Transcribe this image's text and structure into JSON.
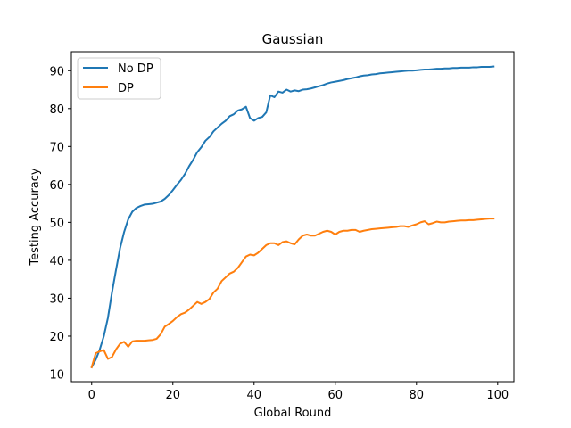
{
  "chart_data": {
    "type": "line",
    "title": "Gaussian",
    "xlabel": "Global Round",
    "ylabel": "Testing Accuracy",
    "xlim": [
      -5,
      104
    ],
    "ylim": [
      8,
      95
    ],
    "xticks": [
      0,
      20,
      40,
      60,
      80,
      100
    ],
    "yticks": [
      10,
      20,
      30,
      40,
      50,
      60,
      70,
      80,
      90
    ],
    "grid": false,
    "legend_position": "top-left",
    "x": [
      0,
      1,
      2,
      3,
      4,
      5,
      6,
      7,
      8,
      9,
      10,
      11,
      12,
      13,
      14,
      15,
      16,
      17,
      18,
      19,
      20,
      21,
      22,
      23,
      24,
      25,
      26,
      27,
      28,
      29,
      30,
      31,
      32,
      33,
      34,
      35,
      36,
      37,
      38,
      39,
      40,
      41,
      42,
      43,
      44,
      45,
      46,
      47,
      48,
      49,
      50,
      51,
      52,
      53,
      54,
      55,
      56,
      57,
      58,
      59,
      60,
      61,
      62,
      63,
      64,
      65,
      66,
      67,
      68,
      69,
      70,
      71,
      72,
      73,
      74,
      75,
      76,
      77,
      78,
      79,
      80,
      81,
      82,
      83,
      84,
      85,
      86,
      87,
      88,
      89,
      90,
      91,
      92,
      93,
      94,
      95,
      96,
      97,
      98,
      99
    ],
    "series": [
      {
        "name": "No DP",
        "color": "#1f77b4",
        "values": [
          11.8,
          13.8,
          16.5,
          20.0,
          24.8,
          31.5,
          37.5,
          43.2,
          47.5,
          50.8,
          52.8,
          53.8,
          54.3,
          54.7,
          54.8,
          54.9,
          55.2,
          55.5,
          56.2,
          57.2,
          58.5,
          59.9,
          61.2,
          62.8,
          64.8,
          66.5,
          68.5,
          69.8,
          71.5,
          72.5,
          74.0,
          75.0,
          76.0,
          76.8,
          78.0,
          78.5,
          79.5,
          79.8,
          80.5,
          77.5,
          76.8,
          77.5,
          77.8,
          79.0,
          83.5,
          83.0,
          84.5,
          84.2,
          85.0,
          84.5,
          84.8,
          84.6,
          85.0,
          85.1,
          85.3,
          85.6,
          85.9,
          86.2,
          86.6,
          86.9,
          87.1,
          87.3,
          87.5,
          87.8,
          88.0,
          88.2,
          88.5,
          88.7,
          88.8,
          89.0,
          89.1,
          89.3,
          89.4,
          89.5,
          89.6,
          89.7,
          89.8,
          89.9,
          90.0,
          90.0,
          90.1,
          90.2,
          90.3,
          90.3,
          90.4,
          90.5,
          90.5,
          90.6,
          90.6,
          90.7,
          90.7,
          90.8,
          90.8,
          90.8,
          90.9,
          90.9,
          91.0,
          91.0,
          91.0,
          91.1
        ]
      },
      {
        "name": "DP",
        "color": "#ff7f0e",
        "values": [
          11.8,
          15.5,
          16.0,
          16.3,
          14.0,
          14.5,
          16.5,
          18.0,
          18.5,
          17.2,
          18.6,
          18.8,
          18.8,
          18.8,
          18.9,
          19.0,
          19.3,
          20.5,
          22.5,
          23.2,
          24.0,
          25.0,
          25.8,
          26.2,
          27.0,
          28.0,
          29.0,
          28.5,
          29.0,
          29.8,
          31.5,
          32.5,
          34.5,
          35.5,
          36.5,
          37.0,
          38.0,
          39.5,
          41.0,
          41.5,
          41.3,
          42.0,
          43.0,
          44.0,
          44.5,
          44.5,
          44.0,
          44.8,
          45.0,
          44.5,
          44.2,
          45.5,
          46.5,
          46.8,
          46.5,
          46.5,
          47.0,
          47.5,
          47.8,
          47.5,
          46.8,
          47.5,
          47.8,
          47.8,
          48.0,
          48.0,
          47.5,
          47.8,
          48.0,
          48.2,
          48.3,
          48.4,
          48.5,
          48.6,
          48.7,
          48.8,
          49.0,
          49.0,
          48.8,
          49.2,
          49.5,
          50.0,
          50.3,
          49.5,
          49.8,
          50.2,
          50.0,
          50.0,
          50.2,
          50.3,
          50.4,
          50.5,
          50.5,
          50.6,
          50.6,
          50.7,
          50.8,
          50.9,
          51.0,
          51.0
        ]
      }
    ]
  }
}
